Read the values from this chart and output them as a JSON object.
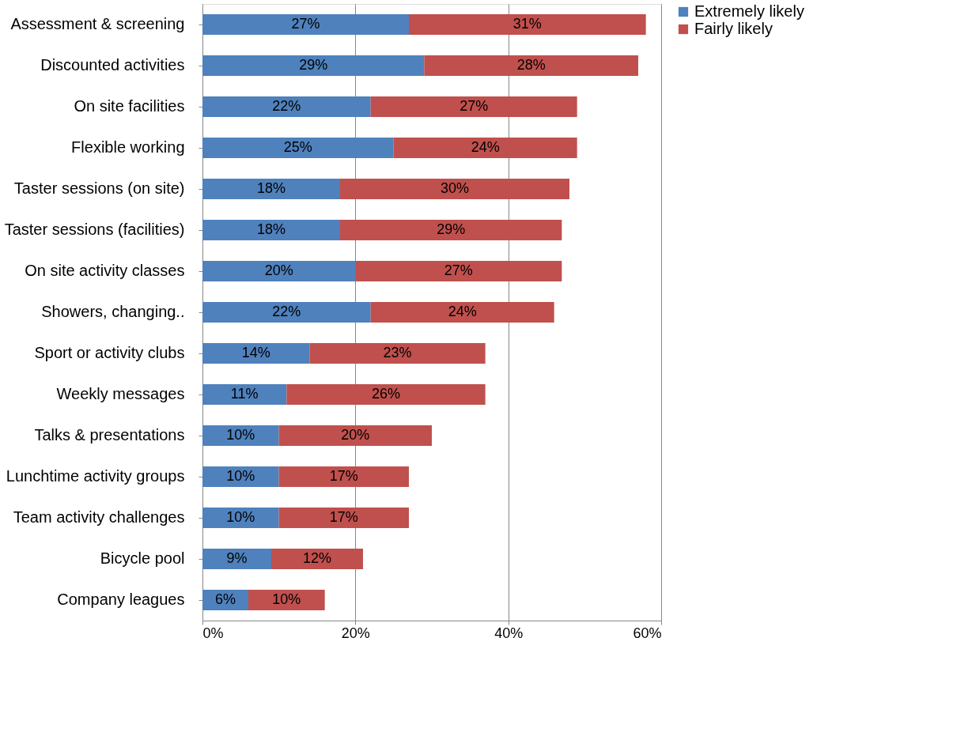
{
  "chart_data": {
    "type": "bar",
    "orientation": "horizontal",
    "stacked": true,
    "categories": [
      "Assessment & screening",
      "Discounted activities",
      "On site facilities",
      "Flexible working",
      "Taster sessions (on site)",
      "Taster sessions (facilities)",
      "On site activity classes",
      "Showers, changing..",
      "Sport or activity clubs",
      "Weekly messages",
      "Talks & presentations",
      "Lunchtime activity groups",
      "Team activity challenges",
      "Bicycle pool",
      "Company leagues"
    ],
    "series": [
      {
        "name": "Extremely likely",
        "color": "#4f81bd",
        "values": [
          27,
          29,
          22,
          25,
          18,
          18,
          20,
          22,
          14,
          11,
          10,
          10,
          10,
          9,
          6
        ],
        "value_labels": [
          "27%",
          "29%",
          "22%",
          "25%",
          "18%",
          "18%",
          "20%",
          "22%",
          "14%",
          "11%",
          "10%",
          "10%",
          "10%",
          "9%",
          "6%"
        ]
      },
      {
        "name": "Fairly likely",
        "color": "#c0504d",
        "values": [
          31,
          28,
          27,
          24,
          30,
          29,
          27,
          24,
          23,
          26,
          20,
          17,
          17,
          12,
          10
        ],
        "value_labels": [
          "31%",
          "28%",
          "27%",
          "24%",
          "30%",
          "29%",
          "27%",
          "24%",
          "23%",
          "26%",
          "20%",
          "17%",
          "17%",
          "12%",
          "10%"
        ]
      }
    ],
    "xlim": [
      0,
      60
    ],
    "xticks": [
      {
        "value": 0,
        "label": "0%"
      },
      {
        "value": 20,
        "label": "20%"
      },
      {
        "value": 40,
        "label": "40%"
      },
      {
        "value": 60,
        "label": "60%"
      }
    ],
    "grid": "x",
    "legend": "right"
  }
}
